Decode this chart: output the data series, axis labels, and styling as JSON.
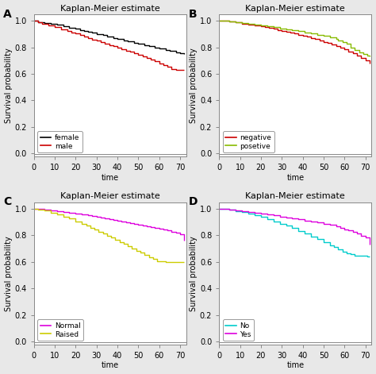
{
  "title": "Kaplan-Meier estimate",
  "xlabel": "time",
  "ylabel": "Survival probability",
  "xlim": [
    0,
    73
  ],
  "ylim": [
    -0.02,
    1.05
  ],
  "yticks": [
    0.0,
    0.2,
    0.4,
    0.6,
    0.8,
    1.0
  ],
  "xticks": [
    0,
    10,
    20,
    30,
    40,
    50,
    60,
    70
  ],
  "background_color": "#e8e8e8",
  "axis_bg_color": "#ffffff",
  "fontsize_title": 8,
  "fontsize_axis": 7,
  "fontsize_label": 7,
  "fontsize_panel": 10,
  "panel_A": {
    "legend": [
      "female",
      "male"
    ],
    "colors": [
      "#000000",
      "#cc0000"
    ],
    "series": [
      {
        "x": [
          0,
          2,
          5,
          8,
          11,
          14,
          17,
          20,
          22,
          24,
          26,
          28,
          30,
          33,
          35,
          38,
          40,
          43,
          45,
          48,
          50,
          53,
          55,
          58,
          60,
          63,
          65,
          68,
          70,
          72
        ],
        "y": [
          1.0,
          0.99,
          0.985,
          0.975,
          0.968,
          0.958,
          0.948,
          0.938,
          0.93,
          0.922,
          0.915,
          0.908,
          0.9,
          0.89,
          0.882,
          0.872,
          0.863,
          0.853,
          0.845,
          0.835,
          0.825,
          0.815,
          0.807,
          0.797,
          0.79,
          0.78,
          0.772,
          0.762,
          0.755,
          0.75
        ]
      },
      {
        "x": [
          0,
          2,
          4,
          7,
          10,
          13,
          16,
          18,
          20,
          22,
          24,
          26,
          28,
          30,
          32,
          34,
          36,
          38,
          40,
          42,
          44,
          46,
          48,
          50,
          52,
          54,
          56,
          58,
          60,
          62,
          64,
          66,
          68,
          70,
          72
        ],
        "y": [
          1.0,
          0.99,
          0.978,
          0.963,
          0.95,
          0.936,
          0.922,
          0.912,
          0.902,
          0.892,
          0.882,
          0.871,
          0.86,
          0.849,
          0.838,
          0.828,
          0.818,
          0.808,
          0.797,
          0.787,
          0.776,
          0.765,
          0.754,
          0.743,
          0.731,
          0.719,
          0.706,
          0.693,
          0.68,
          0.666,
          0.652,
          0.638,
          0.63,
          0.63,
          0.63
        ]
      }
    ]
  },
  "panel_B": {
    "legend": [
      "negative",
      "posetive"
    ],
    "colors": [
      "#cc0000",
      "#88bb00"
    ],
    "series": [
      {
        "x": [
          0,
          2,
          5,
          8,
          11,
          14,
          17,
          20,
          22,
          24,
          26,
          28,
          30,
          32,
          34,
          36,
          38,
          40,
          42,
          44,
          46,
          48,
          50,
          52,
          54,
          56,
          58,
          60,
          62,
          64,
          66,
          68,
          70,
          72
        ],
        "y": [
          1.0,
          0.998,
          0.993,
          0.986,
          0.979,
          0.972,
          0.965,
          0.958,
          0.951,
          0.945,
          0.938,
          0.931,
          0.924,
          0.917,
          0.91,
          0.903,
          0.895,
          0.887,
          0.879,
          0.871,
          0.862,
          0.852,
          0.842,
          0.831,
          0.82,
          0.808,
          0.796,
          0.783,
          0.77,
          0.756,
          0.74,
          0.72,
          0.7,
          0.68
        ]
      },
      {
        "x": [
          0,
          2,
          5,
          8,
          11,
          14,
          17,
          20,
          23,
          26,
          29,
          32,
          35,
          38,
          41,
          44,
          47,
          50,
          53,
          56,
          57,
          59,
          61,
          63,
          65,
          67,
          69,
          71,
          72
        ],
        "y": [
          1.0,
          0.998,
          0.993,
          0.987,
          0.981,
          0.975,
          0.969,
          0.963,
          0.956,
          0.95,
          0.943,
          0.936,
          0.928,
          0.92,
          0.912,
          0.903,
          0.894,
          0.885,
          0.875,
          0.864,
          0.852,
          0.84,
          0.828,
          0.8,
          0.78,
          0.76,
          0.748,
          0.735,
          0.73
        ]
      }
    ]
  },
  "panel_C": {
    "legend": [
      "Normal",
      "Raised"
    ],
    "colors": [
      "#dd00dd",
      "#cccc00"
    ],
    "series": [
      {
        "x": [
          0,
          2,
          5,
          8,
          11,
          14,
          17,
          20,
          23,
          26,
          28,
          30,
          32,
          34,
          36,
          38,
          40,
          42,
          44,
          46,
          48,
          50,
          52,
          54,
          56,
          58,
          60,
          62,
          64,
          66,
          68,
          70,
          72
        ],
        "y": [
          1.0,
          0.998,
          0.993,
          0.988,
          0.983,
          0.978,
          0.972,
          0.966,
          0.96,
          0.954,
          0.948,
          0.942,
          0.937,
          0.931,
          0.925,
          0.919,
          0.913,
          0.907,
          0.901,
          0.895,
          0.889,
          0.882,
          0.876,
          0.869,
          0.862,
          0.856,
          0.85,
          0.843,
          0.836,
          0.826,
          0.818,
          0.81,
          0.76
        ]
      },
      {
        "x": [
          0,
          2,
          5,
          8,
          11,
          14,
          17,
          20,
          23,
          25,
          27,
          29,
          31,
          33,
          35,
          37,
          39,
          41,
          43,
          45,
          47,
          49,
          51,
          53,
          55,
          57,
          59,
          61,
          63,
          65,
          67,
          69,
          71,
          72
        ],
        "y": [
          1.0,
          0.995,
          0.985,
          0.972,
          0.958,
          0.943,
          0.926,
          0.906,
          0.887,
          0.872,
          0.858,
          0.843,
          0.829,
          0.814,
          0.799,
          0.783,
          0.767,
          0.751,
          0.735,
          0.719,
          0.703,
          0.686,
          0.67,
          0.654,
          0.638,
          0.622,
          0.607,
          0.604,
          0.601,
          0.6,
          0.6,
          0.6,
          0.6,
          0.6
        ]
      }
    ]
  },
  "panel_D": {
    "legend": [
      "No",
      "Yes"
    ],
    "colors": [
      "#00cccc",
      "#dd00dd"
    ],
    "series": [
      {
        "x": [
          0,
          2,
          5,
          8,
          11,
          14,
          17,
          20,
          23,
          26,
          29,
          32,
          35,
          38,
          41,
          44,
          47,
          50,
          53,
          55,
          57,
          59,
          61,
          63,
          65,
          67,
          69,
          71,
          72
        ],
        "y": [
          1.0,
          0.998,
          0.992,
          0.984,
          0.975,
          0.965,
          0.953,
          0.938,
          0.92,
          0.905,
          0.889,
          0.872,
          0.854,
          0.835,
          0.815,
          0.793,
          0.771,
          0.748,
          0.725,
          0.71,
          0.695,
          0.68,
          0.668,
          0.657,
          0.65,
          0.648,
          0.645,
          0.643,
          0.64
        ]
      },
      {
        "x": [
          0,
          2,
          5,
          8,
          11,
          14,
          17,
          20,
          23,
          26,
          29,
          32,
          35,
          38,
          41,
          44,
          47,
          50,
          53,
          56,
          58,
          60,
          62,
          64,
          66,
          68,
          70,
          72
        ],
        "y": [
          1.0,
          0.998,
          0.993,
          0.987,
          0.981,
          0.975,
          0.969,
          0.963,
          0.957,
          0.95,
          0.943,
          0.936,
          0.929,
          0.921,
          0.913,
          0.905,
          0.897,
          0.888,
          0.879,
          0.869,
          0.858,
          0.847,
          0.836,
          0.824,
          0.812,
          0.799,
          0.786,
          0.73
        ]
      }
    ]
  }
}
